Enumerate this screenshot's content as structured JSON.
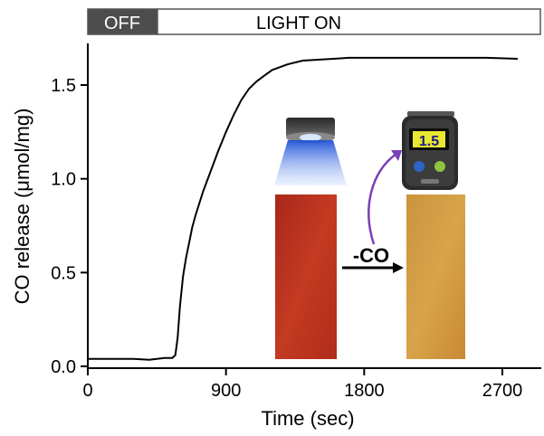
{
  "state_bar": {
    "off_label": "OFF",
    "on_label": "LIGHT ON",
    "off_color": "#4d4d4d",
    "on_color": "#ffffff"
  },
  "chart_data": {
    "type": "line",
    "xlabel": "Time (sec)",
    "ylabel": "CO release (μmol/mg)",
    "xlim": [
      0,
      2800
    ],
    "ylim": [
      0,
      1.7
    ],
    "xticks": [
      0,
      900,
      1800,
      2700
    ],
    "yticks": [
      0.0,
      0.5,
      1.0,
      1.5
    ],
    "xtick_labels": [
      "0",
      "900",
      "1800",
      "2700"
    ],
    "ytick_labels": [
      "0.0",
      "0.5",
      "1.0",
      "1.5"
    ],
    "light_on_time": 430,
    "grid": false,
    "series": [
      {
        "color": "#000000",
        "x": [
          0,
          100,
          200,
          300,
          400,
          450,
          500,
          550,
          570,
          585,
          600,
          620,
          640,
          660,
          680,
          700,
          750,
          800,
          850,
          900,
          950,
          1000,
          1050,
          1100,
          1150,
          1200,
          1300,
          1400,
          1500,
          1600,
          1700,
          1800,
          2000,
          2200,
          2400,
          2600,
          2800
        ],
        "y": [
          0.04,
          0.04,
          0.04,
          0.04,
          0.035,
          0.04,
          0.045,
          0.045,
          0.06,
          0.15,
          0.32,
          0.48,
          0.58,
          0.66,
          0.74,
          0.8,
          0.93,
          1.04,
          1.15,
          1.25,
          1.34,
          1.42,
          1.48,
          1.52,
          1.55,
          1.58,
          1.61,
          1.63,
          1.635,
          1.64,
          1.645,
          1.645,
          1.645,
          1.645,
          1.645,
          1.645,
          1.64
        ]
      }
    ],
    "annotations": {
      "arrow_label": "-CO",
      "meter_reading": "1.5"
    }
  }
}
